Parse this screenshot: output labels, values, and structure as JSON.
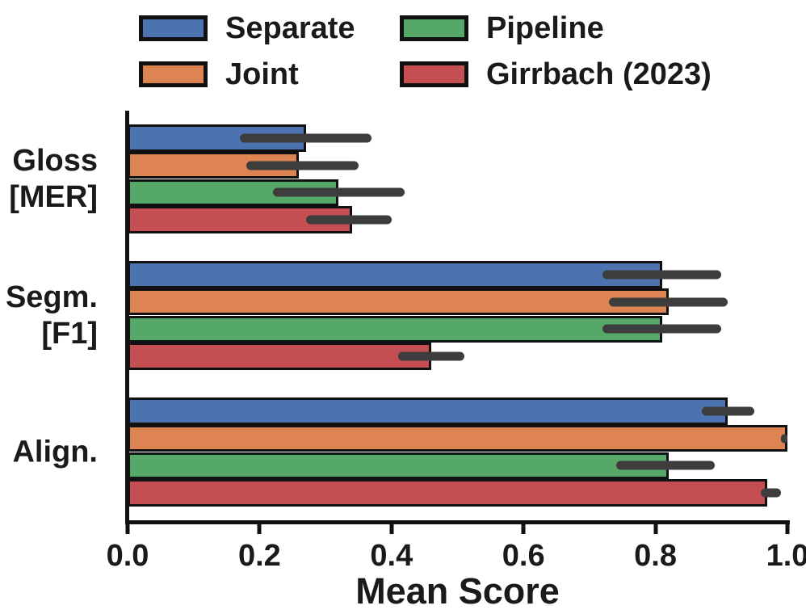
{
  "chart_data": {
    "type": "bar",
    "orientation": "horizontal",
    "xlabel": "Mean Score",
    "ylabel": "",
    "xlim": [
      0.0,
      1.0
    ],
    "x_ticks": [
      {
        "value": 0.0,
        "label": "0.0"
      },
      {
        "value": 0.2,
        "label": "0.2"
      },
      {
        "value": 0.4,
        "label": "0.4"
      },
      {
        "value": 0.6,
        "label": "0.6"
      },
      {
        "value": 0.8,
        "label": "0.8"
      },
      {
        "value": 1.0,
        "label": "1.0"
      }
    ],
    "categories": [
      {
        "lines": [
          "Gloss",
          "[MER]"
        ]
      },
      {
        "lines": [
          "Segm.",
          "[F1]"
        ]
      },
      {
        "lines": [
          "Align."
        ]
      }
    ],
    "series": [
      {
        "name": "Separate",
        "color": "#4C72B0",
        "values": [
          0.27,
          0.81,
          0.91
        ],
        "error_ranges": [
          [
            0.17,
            0.37
          ],
          [
            0.72,
            0.9
          ],
          [
            0.87,
            0.95
          ]
        ]
      },
      {
        "name": "Joint",
        "color": "#DD8452",
        "values": [
          0.26,
          0.82,
          1.0
        ],
        "error_ranges": [
          [
            0.18,
            0.35
          ],
          [
            0.73,
            0.91
          ],
          [
            0.99,
            1.0
          ]
        ]
      },
      {
        "name": "Pipeline",
        "color": "#55A868",
        "values": [
          0.32,
          0.81,
          0.82
        ],
        "error_ranges": [
          [
            0.22,
            0.42
          ],
          [
            0.72,
            0.9
          ],
          [
            0.74,
            0.89
          ]
        ]
      },
      {
        "name": "Girrbach (2023)",
        "color": "#C44E52",
        "values": [
          0.34,
          0.46,
          0.97
        ],
        "error_ranges": [
          [
            0.27,
            0.4
          ],
          [
            0.41,
            0.51
          ],
          [
            0.96,
            0.99
          ]
        ]
      }
    ],
    "legend": {
      "position": "top",
      "columns": 2,
      "column_major_order": true
    },
    "style": {
      "error_bar_color": "#3d3d3d",
      "bar_edge_color": "#111111",
      "axis_color": "#111111",
      "text_color": "#1a1a1a",
      "grid": false
    }
  }
}
